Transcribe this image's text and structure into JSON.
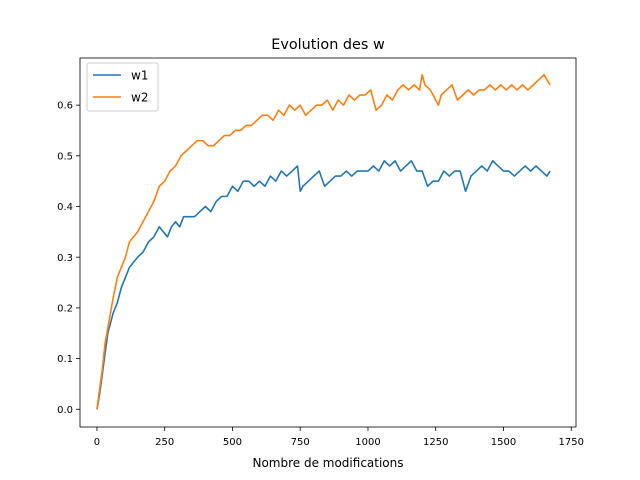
{
  "chart_data": {
    "type": "line",
    "title": "Evolution des w",
    "xlabel": "Nombre de modifications",
    "ylabel": "",
    "xlim": [
      -62.5,
      1767.5
    ],
    "ylim": [
      -0.035,
      0.693
    ],
    "xticks": [
      0,
      250,
      500,
      750,
      1000,
      1250,
      1500,
      1750
    ],
    "xtick_labels": [
      "0",
      "250",
      "500",
      "750",
      "1000",
      "1250",
      "1500",
      "1750"
    ],
    "yticks": [
      0.0,
      0.1,
      0.2,
      0.3,
      0.4,
      0.5,
      0.6
    ],
    "ytick_labels": [
      "0.0",
      "0.1",
      "0.2",
      "0.3",
      "0.4",
      "0.5",
      "0.6"
    ],
    "grid": false,
    "legend": "top-left",
    "series": [
      {
        "name": "w1",
        "color": "#1f77b4",
        "x": [
          0,
          10,
          20,
          30,
          40,
          50,
          60,
          75,
          90,
          105,
          120,
          135,
          150,
          170,
          190,
          210,
          230,
          245,
          260,
          275,
          290,
          305,
          320,
          340,
          360,
          380,
          400,
          420,
          440,
          460,
          480,
          500,
          520,
          540,
          560,
          580,
          600,
          620,
          640,
          660,
          680,
          700,
          720,
          740,
          750,
          760,
          780,
          800,
          820,
          840,
          860,
          880,
          900,
          920,
          940,
          960,
          980,
          1000,
          1020,
          1040,
          1060,
          1080,
          1100,
          1120,
          1140,
          1160,
          1180,
          1200,
          1220,
          1240,
          1260,
          1280,
          1300,
          1320,
          1340,
          1360,
          1380,
          1400,
          1420,
          1440,
          1460,
          1480,
          1500,
          1520,
          1540,
          1560,
          1580,
          1600,
          1620,
          1640,
          1660,
          1672
        ],
        "y": [
          0.0,
          0.03,
          0.07,
          0.11,
          0.15,
          0.17,
          0.19,
          0.21,
          0.24,
          0.26,
          0.28,
          0.29,
          0.3,
          0.31,
          0.33,
          0.34,
          0.36,
          0.35,
          0.34,
          0.36,
          0.37,
          0.36,
          0.38,
          0.38,
          0.38,
          0.39,
          0.4,
          0.39,
          0.41,
          0.42,
          0.42,
          0.44,
          0.43,
          0.45,
          0.45,
          0.44,
          0.45,
          0.44,
          0.46,
          0.45,
          0.47,
          0.46,
          0.47,
          0.48,
          0.43,
          0.44,
          0.45,
          0.46,
          0.47,
          0.44,
          0.45,
          0.46,
          0.46,
          0.47,
          0.46,
          0.47,
          0.47,
          0.47,
          0.48,
          0.47,
          0.49,
          0.48,
          0.49,
          0.47,
          0.48,
          0.49,
          0.47,
          0.47,
          0.44,
          0.45,
          0.45,
          0.47,
          0.46,
          0.47,
          0.47,
          0.43,
          0.46,
          0.47,
          0.48,
          0.47,
          0.49,
          0.48,
          0.47,
          0.47,
          0.46,
          0.47,
          0.48,
          0.47,
          0.48,
          0.47,
          0.46,
          0.47
        ]
      },
      {
        "name": "w2",
        "color": "#ff7f0e",
        "x": [
          0,
          10,
          20,
          30,
          40,
          50,
          60,
          75,
          90,
          105,
          120,
          135,
          150,
          170,
          190,
          210,
          230,
          250,
          270,
          290,
          310,
          330,
          350,
          370,
          390,
          410,
          430,
          450,
          470,
          490,
          510,
          530,
          550,
          570,
          590,
          610,
          630,
          650,
          670,
          690,
          710,
          730,
          750,
          770,
          790,
          810,
          830,
          850,
          870,
          890,
          910,
          930,
          950,
          970,
          990,
          1010,
          1030,
          1050,
          1070,
          1090,
          1110,
          1130,
          1150,
          1170,
          1190,
          1200,
          1210,
          1230,
          1250,
          1260,
          1270,
          1290,
          1310,
          1330,
          1350,
          1370,
          1390,
          1410,
          1430,
          1450,
          1470,
          1490,
          1510,
          1530,
          1550,
          1570,
          1590,
          1610,
          1630,
          1650,
          1660,
          1672
        ],
        "y": [
          0.0,
          0.04,
          0.08,
          0.13,
          0.16,
          0.19,
          0.22,
          0.26,
          0.28,
          0.3,
          0.33,
          0.34,
          0.35,
          0.37,
          0.39,
          0.41,
          0.44,
          0.45,
          0.47,
          0.48,
          0.5,
          0.51,
          0.52,
          0.53,
          0.53,
          0.52,
          0.52,
          0.53,
          0.54,
          0.54,
          0.55,
          0.55,
          0.56,
          0.56,
          0.57,
          0.58,
          0.58,
          0.57,
          0.59,
          0.58,
          0.6,
          0.59,
          0.6,
          0.58,
          0.59,
          0.6,
          0.6,
          0.61,
          0.59,
          0.61,
          0.6,
          0.62,
          0.61,
          0.62,
          0.62,
          0.63,
          0.59,
          0.6,
          0.62,
          0.61,
          0.63,
          0.64,
          0.63,
          0.64,
          0.63,
          0.66,
          0.64,
          0.63,
          0.61,
          0.6,
          0.62,
          0.63,
          0.64,
          0.61,
          0.62,
          0.63,
          0.62,
          0.63,
          0.63,
          0.64,
          0.63,
          0.64,
          0.63,
          0.64,
          0.63,
          0.64,
          0.63,
          0.64,
          0.65,
          0.66,
          0.65,
          0.64
        ]
      }
    ]
  }
}
